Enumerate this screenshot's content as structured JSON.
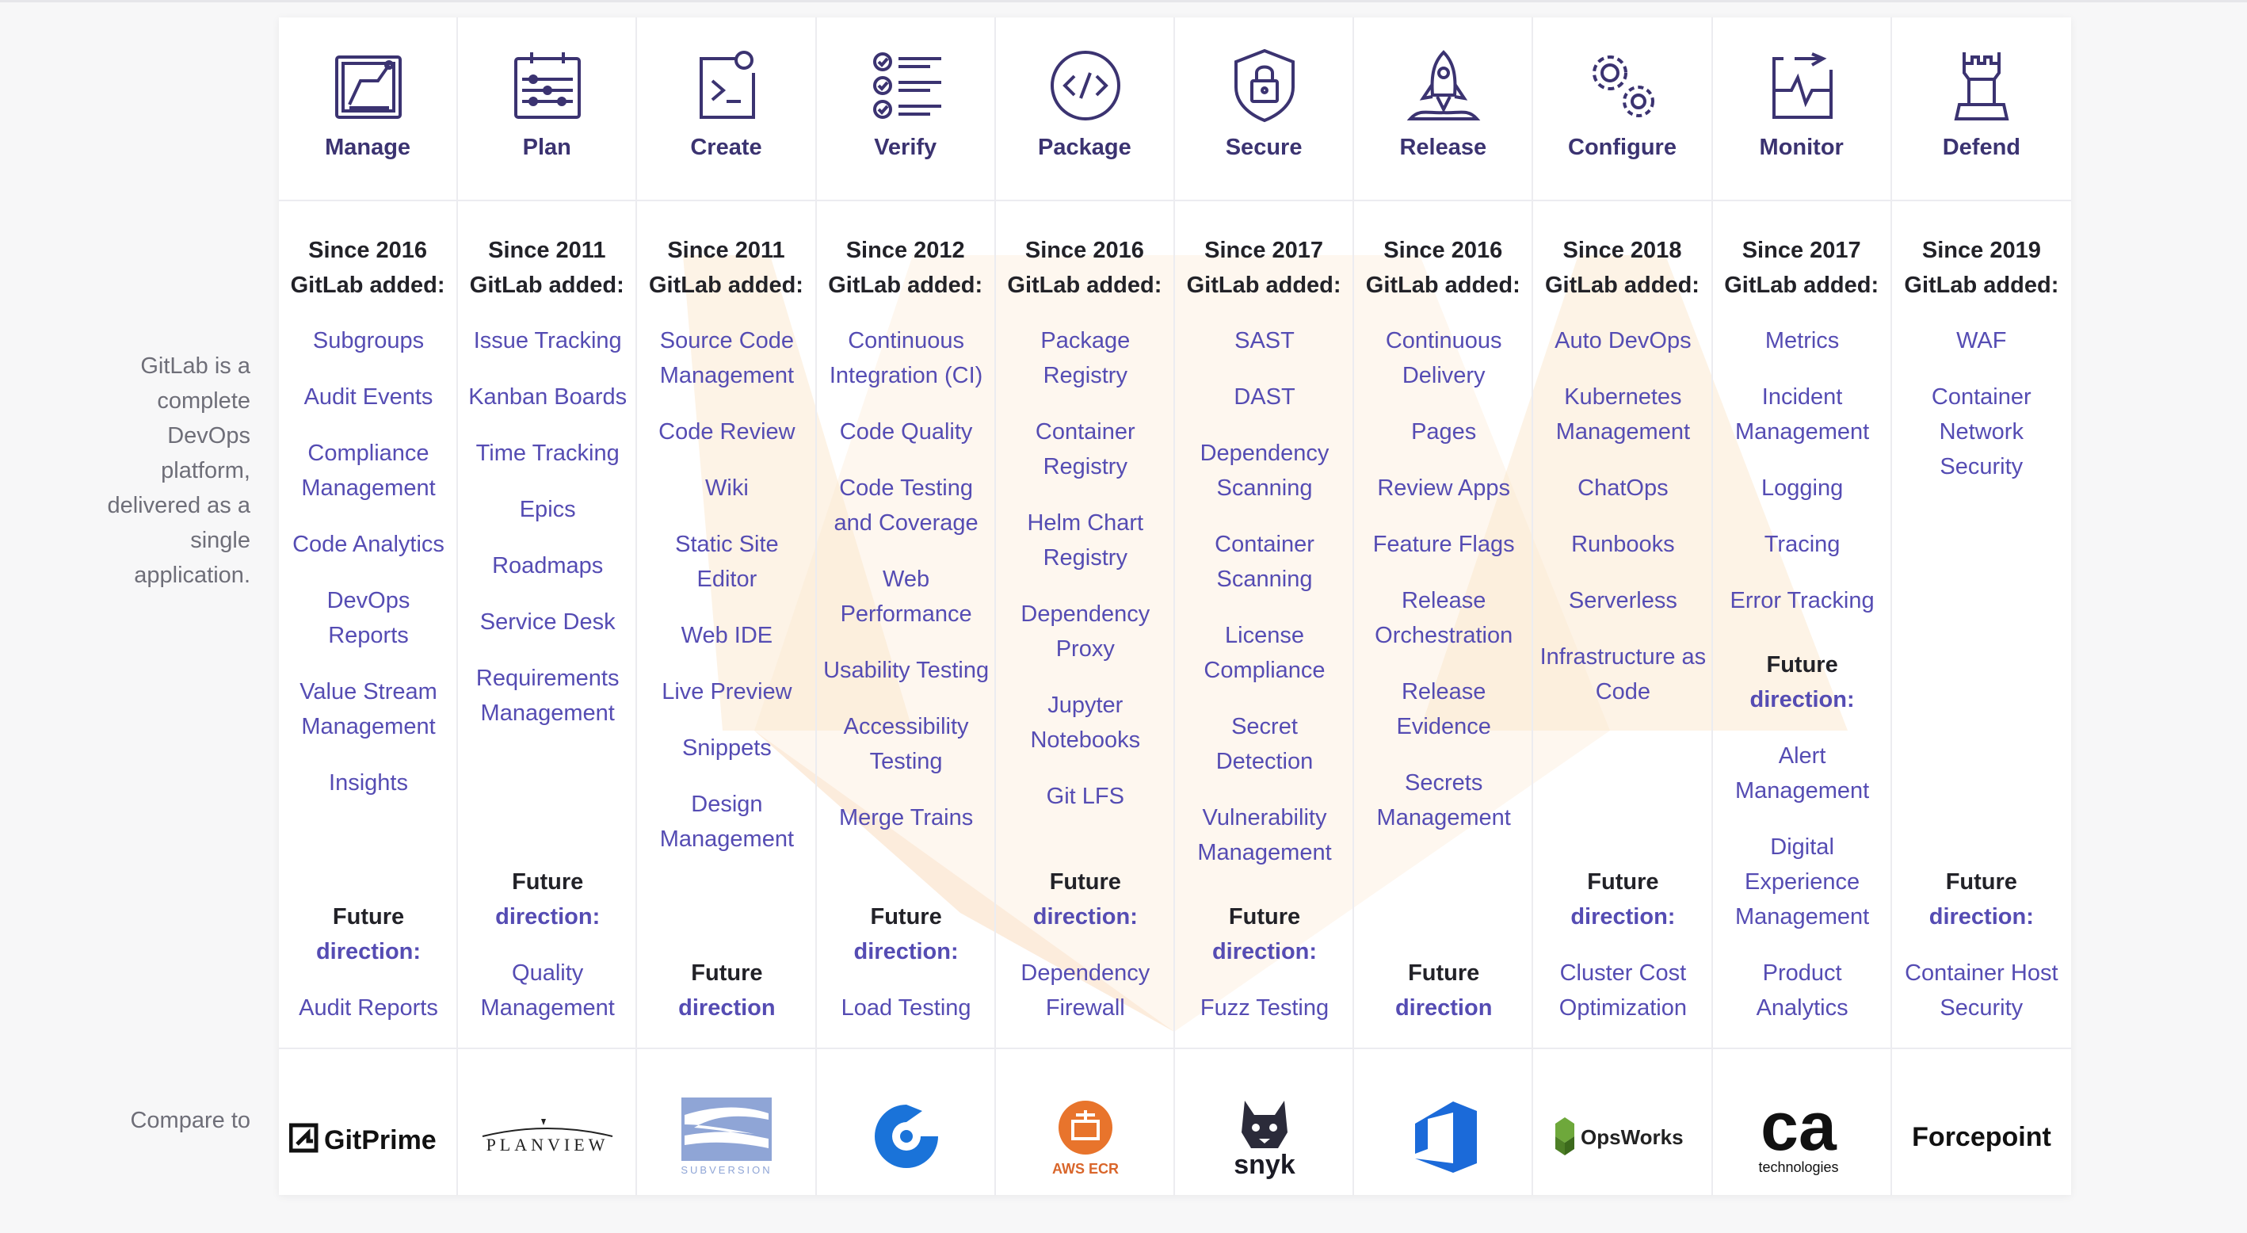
{
  "intro_text": "GitLab is a complete DevOps platform, delivered as a single application.",
  "compare_label": "Compare to",
  "stages": [
    {
      "name": "Manage",
      "icon": "manage-icon",
      "since": "Since 2016",
      "added": "GitLab added:",
      "features": [
        "Subgroups",
        "Audit Events",
        "Compliance Management",
        "Code Analytics",
        "DevOps Reports",
        "Value Stream Management",
        "Insights"
      ],
      "future": {
        "word": "Future",
        "label": "direction:",
        "items": [
          "Audit Reports"
        ]
      },
      "compare": {
        "name": "GitPrime"
      }
    },
    {
      "name": "Plan",
      "icon": "plan-icon",
      "since": "Since 2011",
      "added": "GitLab added:",
      "features": [
        "Issue Tracking",
        "Kanban Boards",
        "Time Tracking",
        "Epics",
        "Roadmaps",
        "Service Desk",
        "Requirements Management"
      ],
      "future": {
        "word": "Future",
        "label": "direction:",
        "items": [
          "Quality Management"
        ]
      },
      "compare": {
        "name": "PLANVIEW"
      }
    },
    {
      "name": "Create",
      "icon": "create-icon",
      "since": "Since 2011",
      "added": "GitLab added:",
      "features": [
        "Source Code Management",
        "Code Review",
        "Wiki",
        "Static Site Editor",
        "Web IDE",
        "Live Preview",
        "Snippets",
        "Design Management"
      ],
      "future": {
        "word": "Future",
        "label": "direction",
        "items": []
      },
      "compare": {
        "name": "SUBVERSION"
      }
    },
    {
      "name": "Verify",
      "icon": "verify-icon",
      "since": "Since 2012",
      "added": "GitLab added:",
      "features": [
        "Continuous Integration (CI)",
        "Code Quality",
        "Code Testing and Coverage",
        "Web Performance",
        "Usability Testing",
        "Accessibility Testing",
        "Merge Trains"
      ],
      "future": {
        "word": "Future",
        "label": "direction:",
        "items": [
          "Load Testing"
        ]
      },
      "compare": {
        "name": "circleci-logo"
      }
    },
    {
      "name": "Package",
      "icon": "package-icon",
      "since": "Since 2016",
      "added": "GitLab added:",
      "features": [
        "Package Registry",
        "Container Registry",
        "Helm Chart Registry",
        "Dependency Proxy",
        "Jupyter Notebooks",
        "Git LFS"
      ],
      "future": {
        "word": "Future",
        "label": "direction:",
        "items": [
          "Dependency Firewall"
        ]
      },
      "compare": {
        "name": "AWS ECR"
      }
    },
    {
      "name": "Secure",
      "icon": "secure-icon",
      "since": "Since 2017",
      "added": "GitLab added:",
      "features": [
        "SAST",
        "DAST",
        "Dependency Scanning",
        "Container Scanning",
        "License Compliance",
        "Secret Detection",
        "Vulnerability Management"
      ],
      "future": {
        "word": "Future",
        "label": "direction:",
        "items": [
          "Fuzz Testing"
        ]
      },
      "compare": {
        "name": "snyk"
      }
    },
    {
      "name": "Release",
      "icon": "release-icon",
      "since": "Since 2016",
      "added": "GitLab added:",
      "features": [
        "Continuous Delivery",
        "Pages",
        "Review Apps",
        "Feature Flags",
        "Release Orchestration",
        "Release Evidence",
        "Secrets Management"
      ],
      "future": {
        "word": "Future",
        "label": "direction",
        "items": []
      },
      "compare": {
        "name": "azure-devops-logo"
      }
    },
    {
      "name": "Configure",
      "icon": "configure-icon",
      "since": "Since 2018",
      "added": "GitLab added:",
      "features": [
        "Auto DevOps",
        "Kubernetes Management",
        "ChatOps",
        "Runbooks",
        "Serverless",
        "Infrastructure as Code"
      ],
      "future": {
        "word": "Future",
        "label": "direction:",
        "items": [
          "Cluster Cost Optimization"
        ]
      },
      "compare": {
        "name": "OpsWorks"
      }
    },
    {
      "name": "Monitor",
      "icon": "monitor-icon",
      "since": "Since 2017",
      "added": "GitLab added:",
      "features": [
        "Metrics",
        "Incident Management",
        "Logging",
        "Tracing",
        "Error Tracking"
      ],
      "future": {
        "word": "Future",
        "label": "direction:",
        "items": [
          "Alert Management",
          "Digital Experience Management",
          "Product Analytics"
        ]
      },
      "compare": {
        "name": "ca",
        "sub": "technologies"
      }
    },
    {
      "name": "Defend",
      "icon": "defend-icon",
      "since": "Since 2019",
      "added": "GitLab added:",
      "features": [
        "WAF",
        "Container Network Security"
      ],
      "future": {
        "word": "Future",
        "label": "direction:",
        "items": [
          "Container Host Security"
        ]
      },
      "compare": {
        "name": "Forcepoint"
      }
    }
  ],
  "colors": {
    "accent": "#554cb3",
    "heading": "#3b3371",
    "text": "#222228",
    "muted": "#6e6e78"
  }
}
